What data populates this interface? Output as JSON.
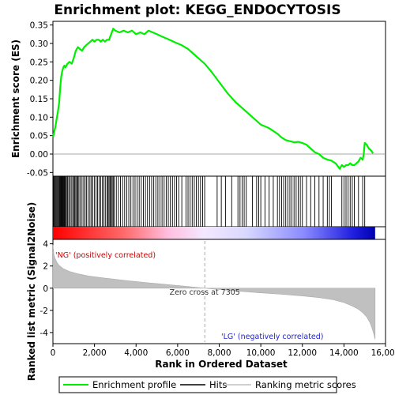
{
  "chart_data": {
    "type": "line",
    "title": "Enrichment plot: KEGG_ENDOCYTOSIS",
    "xlabel": "Rank in Ordered Dataset",
    "xlim": [
      0,
      16000
    ],
    "x_ticks": [
      0,
      2000,
      4000,
      6000,
      8000,
      10000,
      12000,
      14000,
      16000
    ],
    "x_tick_labels": [
      "0",
      "2,000",
      "4,000",
      "6,000",
      "8,000",
      "10,000",
      "12,000",
      "14,000",
      "16,000"
    ],
    "total_rank": 15500,
    "panels": {
      "enrichment": {
        "ylabel": "Enrichment score (ES)",
        "ylim": [
          -0.06,
          0.36
        ],
        "y_ticks": [
          -0.05,
          0.0,
          0.05,
          0.1,
          0.15,
          0.2,
          0.25,
          0.3,
          0.35
        ],
        "y_tick_labels": [
          "-0.05",
          "0.00",
          "0.05",
          "0.10",
          "0.15",
          "0.20",
          "0.25",
          "0.30",
          "0.35"
        ],
        "grid": false,
        "series": [
          {
            "name": "Enrichment profile",
            "color": "#00ee00",
            "x": [
              0,
              60,
              120,
              180,
              240,
              300,
              350,
              400,
              450,
              500,
              550,
              600,
              700,
              800,
              900,
              1000,
              1100,
              1200,
              1300,
              1400,
              1500,
              1600,
              1700,
              1800,
              1900,
              2000,
              2100,
              2200,
              2300,
              2400,
              2500,
              2600,
              2700,
              2800,
              2900,
              3000,
              3200,
              3400,
              3600,
              3800,
              4000,
              4200,
              4400,
              4600,
              4800,
              5000,
              5200,
              5400,
              5600,
              5800,
              6000,
              6200,
              6500,
              6800,
              7000,
              7300,
              7600,
              8000,
              8400,
              8800,
              9200,
              9600,
              10000,
              10400,
              10800,
              11000,
              11200,
              11400,
              11600,
              11800,
              12000,
              12200,
              12400,
              12600,
              12800,
              13000,
              13200,
              13400,
              13600,
              13800,
              13900,
              14000,
              14100,
              14200,
              14300,
              14400,
              14500,
              14600,
              14700,
              14800,
              14900,
              14950,
              15000,
              15100,
              15200,
              15300,
              15400
            ],
            "y": [
              0.045,
              0.06,
              0.075,
              0.095,
              0.115,
              0.14,
              0.18,
              0.21,
              0.225,
              0.235,
              0.24,
              0.235,
              0.245,
              0.25,
              0.245,
              0.26,
              0.28,
              0.29,
              0.285,
              0.28,
              0.29,
              0.295,
              0.3,
              0.305,
              0.31,
              0.305,
              0.31,
              0.31,
              0.305,
              0.31,
              0.305,
              0.31,
              0.31,
              0.325,
              0.34,
              0.335,
              0.33,
              0.335,
              0.33,
              0.335,
              0.325,
              0.33,
              0.325,
              0.335,
              0.33,
              0.325,
              0.32,
              0.315,
              0.31,
              0.305,
              0.3,
              0.295,
              0.285,
              0.27,
              0.26,
              0.245,
              0.225,
              0.195,
              0.165,
              0.14,
              0.12,
              0.1,
              0.08,
              0.07,
              0.055,
              0.045,
              0.038,
              0.035,
              0.032,
              0.033,
              0.03,
              0.025,
              0.015,
              0.005,
              0.0,
              -0.01,
              -0.015,
              -0.018,
              -0.025,
              -0.04,
              -0.03,
              -0.035,
              -0.03,
              -0.03,
              -0.025,
              -0.03,
              -0.03,
              -0.025,
              -0.02,
              -0.01,
              -0.015,
              0.0,
              0.03,
              0.025,
              0.015,
              0.01,
              0.002
            ]
          }
        ],
        "zero_line": 0.0
      },
      "hits": {
        "legend_label": "Hits",
        "hit_ranks": [
          20,
          60,
          100,
          140,
          180,
          220,
          260,
          300,
          330,
          360,
          390,
          420,
          450,
          480,
          510,
          540,
          570,
          610,
          650,
          700,
          760,
          820,
          880,
          950,
          1000,
          1050,
          1100,
          1150,
          1200,
          1250,
          1320,
          1400,
          1480,
          1550,
          1620,
          1700,
          1780,
          1850,
          1920,
          2000,
          2080,
          2150,
          2220,
          2300,
          2380,
          2450,
          2520,
          2600,
          2650,
          2700,
          2750,
          2800,
          2850,
          2900,
          2950,
          3050,
          3150,
          3250,
          3350,
          3450,
          3550,
          3650,
          3750,
          3850,
          3950,
          4050,
          4150,
          4250,
          4350,
          4450,
          4550,
          4650,
          4750,
          4850,
          4950,
          5050,
          5150,
          5250,
          5350,
          5450,
          5550,
          5650,
          5750,
          5850,
          5950,
          6050,
          6200,
          6400,
          6500,
          6600,
          6700,
          6800,
          6900,
          7000,
          7100,
          7200,
          7300,
          7900,
          8100,
          8300,
          8600,
          8900,
          9000,
          9100,
          9200,
          9300,
          9600,
          9800,
          9900,
          10000,
          10200,
          10400,
          10600,
          10800,
          10900,
          11000,
          11100,
          11200,
          11300,
          11400,
          11500,
          11600,
          11700,
          11800,
          11900,
          12000,
          12200,
          12400,
          12600,
          12800,
          13000,
          13200,
          13300,
          13400,
          13900,
          14000,
          14100,
          14200,
          14300,
          14400,
          14500,
          14700,
          14900,
          15000
        ]
      },
      "ranked_metric": {
        "ylabel": "Ranked list metric (Signal2Noise)",
        "ylim": [
          -5,
          4.4
        ],
        "y_ticks": [
          -4,
          -2,
          0,
          2,
          4
        ],
        "y_tick_labels": [
          "-4",
          "-2",
          "0",
          "2",
          "4"
        ],
        "x": [
          0,
          50,
          100,
          200,
          300,
          500,
          800,
          1200,
          1700,
          2500,
          3500,
          4500,
          5500,
          6500,
          7305,
          8000,
          9000,
          10000,
          11000,
          12000,
          12800,
          13500,
          14000,
          14400,
          14700,
          14900,
          15100,
          15250,
          15350,
          15450,
          15500
        ],
        "y": [
          3.9,
          3.0,
          2.7,
          2.3,
          2.05,
          1.75,
          1.5,
          1.3,
          1.1,
          0.9,
          0.7,
          0.5,
          0.33,
          0.15,
          0.0,
          -0.12,
          -0.28,
          -0.42,
          -0.55,
          -0.7,
          -0.85,
          -1.05,
          -1.3,
          -1.6,
          -1.9,
          -2.2,
          -2.6,
          -3.1,
          -3.6,
          -4.2,
          -4.6
        ],
        "fill_color": "#c0c0c0",
        "zero_cross_label": "Zero cross at 7305",
        "zero_cross_rank": 7305,
        "positive_label": "'NG' (positively correlated)",
        "negative_label": "'LG' (negatively correlated)",
        "positive_color": "#ff0000",
        "negative_color": "#0000cc"
      }
    },
    "legend": {
      "placement": "bottom",
      "items": [
        {
          "label": "Enrichment profile",
          "color": "#00ee00"
        },
        {
          "label": "Hits",
          "color": "#000000"
        },
        {
          "label": "Ranking metric scores",
          "color": "#c0c0c0"
        }
      ]
    }
  }
}
